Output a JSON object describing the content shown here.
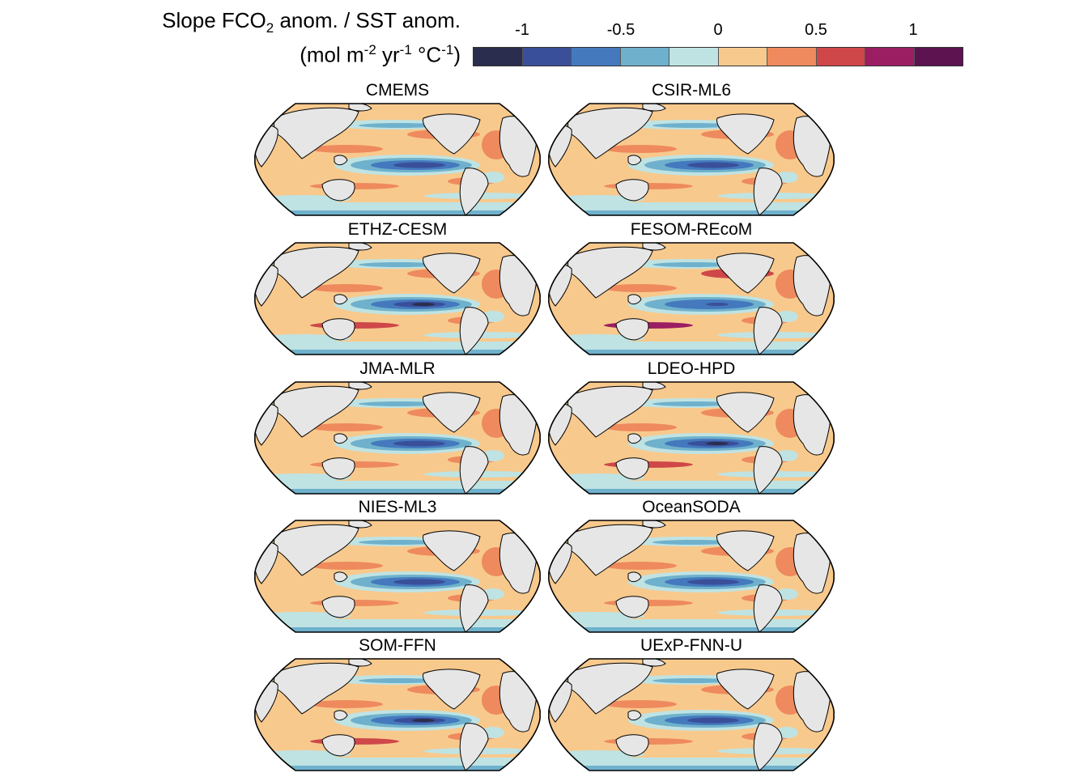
{
  "legend": {
    "title_main": "Slope FCO",
    "title_sub": "2",
    "title_rest": " anom. / SST anom.",
    "units_a": "(mol m",
    "units_b": "-2",
    "units_c": " yr",
    "units_d": "-1",
    "units_e": " °C",
    "units_f": "-1",
    "units_g": ")",
    "ticks": [
      "-1",
      "-0.5",
      "0",
      "0.5",
      "1"
    ],
    "colors": [
      "#2b2d4e",
      "#3a4f9a",
      "#4479be",
      "#6fb1cc",
      "#bfe3e3",
      "#f8c98d",
      "#ee8a5d",
      "#cf4749",
      "#9b1e63",
      "#5c1350"
    ]
  },
  "panels": [
    {
      "name": "CMEMS",
      "variant": "mild"
    },
    {
      "name": "CSIR-ML6",
      "variant": "mild"
    },
    {
      "name": "ETHZ-CESM",
      "variant": "strong"
    },
    {
      "name": "FESOM-REcoM",
      "variant": "warm"
    },
    {
      "name": "JMA-MLR",
      "variant": "mild"
    },
    {
      "name": "LDEO-HPD",
      "variant": "strong"
    },
    {
      "name": "NIES-ML3",
      "variant": "mild"
    },
    {
      "name": "OceanSODA",
      "variant": "mild"
    },
    {
      "name": "SOM-FFN",
      "variant": "strong"
    },
    {
      "name": "UExP-FNN-U",
      "variant": "mild"
    }
  ]
}
